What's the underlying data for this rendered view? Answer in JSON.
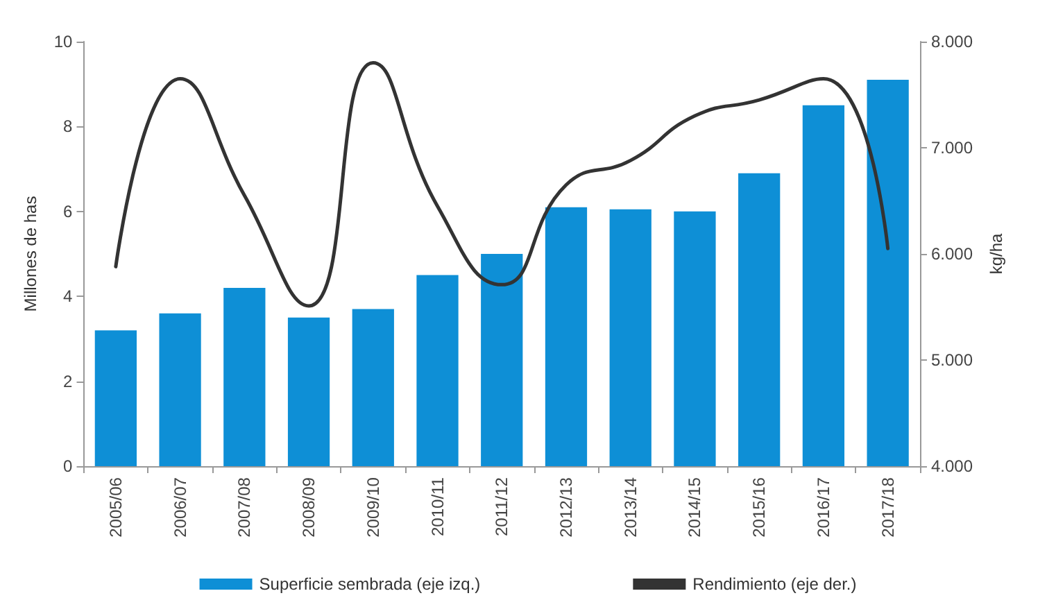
{
  "chart_data": {
    "type": "bar",
    "ylabel": "Millones de has",
    "y2label": "kg/ha",
    "categories": [
      "2005/06",
      "2006/07",
      "2007/08",
      "2008/09",
      "2009/10",
      "2010/11",
      "2011/12",
      "2012/13",
      "2013/14",
      "2014/15",
      "2015/16",
      "2016/17",
      "2017/18"
    ],
    "series": [
      {
        "name": "Superficie sembrada (eje izq.)",
        "color": "#0e8fd6",
        "values": [
          3.2,
          3.6,
          4.2,
          3.5,
          3.7,
          4.5,
          5.0,
          6.1,
          6.05,
          6.0,
          6.9,
          8.5,
          9.1
        ]
      },
      {
        "name": "Rendimiento (eje der.)",
        "type": "line",
        "axis": "y2",
        "color": "#333333",
        "values": [
          5880,
          7650,
          6550,
          5510,
          7800,
          6450,
          5710,
          6650,
          6880,
          7300,
          7450,
          7650,
          6050
        ]
      }
    ],
    "ylim": [
      0,
      10
    ],
    "yticks": [
      0,
      2,
      4,
      6,
      8,
      10
    ],
    "y2lim": [
      4000,
      8000
    ],
    "y2ticks": [
      {
        "value": 4000,
        "label": "4.000"
      },
      {
        "value": 5000,
        "label": "5.000"
      },
      {
        "value": 6000,
        "label": "6.000"
      },
      {
        "value": 7000,
        "label": "7.000"
      },
      {
        "value": 8000,
        "label": "8.000"
      }
    ],
    "grid": false,
    "legend": "bottom",
    "marker": "none",
    "line_style": "solid"
  }
}
